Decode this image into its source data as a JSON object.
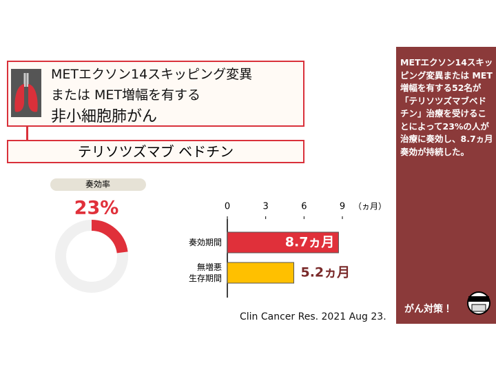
{
  "header": {
    "title_lines": [
      "METエクソン14スキッピング変異",
      "または MET増幅を有する",
      "非小細胞肺がん"
    ],
    "drug": "テリソツズマブ ベドチン"
  },
  "chart_data": [
    {
      "type": "donut",
      "title": "奏効率",
      "values": [
        23
      ],
      "value_labels": [
        "23%"
      ],
      "ylim": [
        0,
        100
      ],
      "color": "#e0303a"
    },
    {
      "type": "barh",
      "categories": [
        "奏効期間",
        "無増悪\n生存期間"
      ],
      "values": [
        8.7,
        5.2
      ],
      "value_labels": [
        "8.7ヵ月",
        "5.2ヵ月"
      ],
      "colors": [
        "#e0303a",
        "#ffc000"
      ],
      "xlim": [
        0,
        9
      ],
      "xticks": [
        0,
        3,
        6,
        9
      ],
      "xlabel": "（ヵ月）"
    }
  ],
  "source": "Clin Cancer Res. 2021 Aug 23.",
  "sidebar": {
    "text": "METエクソン14スキッピング変異または MET増幅を有する52名が「テリソツズマブベドチン」治療を受けることによって23%の人が治療に奏効し、8.7ヵ月奏効が持続した。",
    "footer": "がん対策！"
  }
}
